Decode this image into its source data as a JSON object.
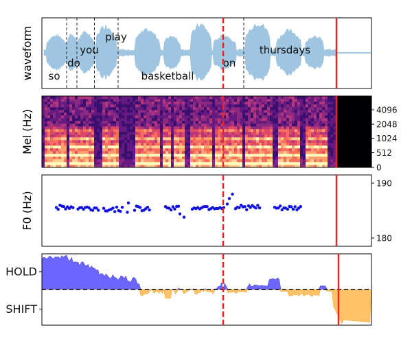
{
  "chart_data": [
    {
      "type": "area",
      "ylabel": "waveform",
      "words": [
        {
          "text": "so",
          "x": 0.6
        },
        {
          "text": "do",
          "x": 1.55
        },
        {
          "text": "you",
          "x": 2.3
        },
        {
          "text": "play",
          "x": 3.6
        },
        {
          "text": "basketball",
          "x": 6.1
        },
        {
          "text": "on",
          "x": 9.1
        },
        {
          "text": "thursdays",
          "x": 11.8
        }
      ],
      "word_boundaries": [
        1.2,
        1.7,
        2.55,
        3.7,
        9.8
      ],
      "current_time_line": 8.8,
      "end_of_speech_line": 14.3,
      "xlim": [
        0,
        16
      ]
    },
    {
      "type": "heatmap",
      "ylabel": "Mel (Hz)",
      "yticks": [
        "0",
        "512",
        "1024",
        "2048",
        "4096"
      ],
      "current_time_line": 8.8,
      "end_of_speech_line": 14.3,
      "xlim": [
        0,
        16
      ]
    },
    {
      "type": "scatter",
      "ylabel": "F0 (Hz)",
      "yticks": [
        180,
        190
      ],
      "ylim": [
        178.5,
        191.5
      ],
      "current_time_line": 8.8,
      "end_of_speech_line": 14.3,
      "xlim": [
        0,
        16
      ]
    },
    {
      "type": "area",
      "ytick_labels": [
        "HOLD",
        "SHIFT"
      ],
      "ylim": [
        -1.0,
        1.0
      ],
      "current_time_line": 8.8,
      "end_of_speech_line": 14.3,
      "xlim": [
        0,
        16
      ]
    }
  ],
  "colors": {
    "waveform": "#9fc5e0",
    "hold": "#6b66ff",
    "shift": "#ffc266",
    "f0_points": "#1010e0",
    "marker_line": "#e8262a"
  }
}
